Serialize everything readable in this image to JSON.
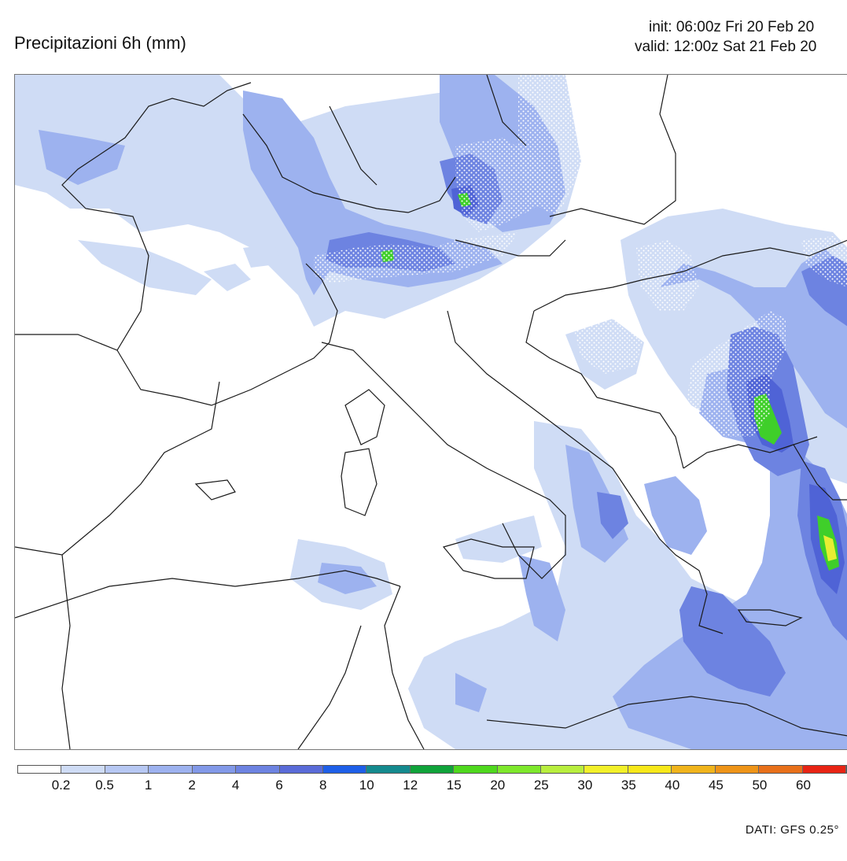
{
  "header": {
    "title": "Precipitazioni 6h (mm)",
    "init": "init: 06:00z Fri 20 Feb 20",
    "valid": "valid: 12:00z Sat 21 Feb 20"
  },
  "legend": {
    "colors": [
      "#ffffff",
      "#cfdcf5",
      "#b7c8f3",
      "#9db2ef",
      "#8299e8",
      "#6d83e1",
      "#5a6bd8",
      "#1e5fe8",
      "#148a8e",
      "#10a33a",
      "#4fd81e",
      "#7ee82c",
      "#b8ee3e",
      "#f2f02a",
      "#f7e81a",
      "#f0b41c",
      "#ee9418",
      "#e8701a",
      "#e82414"
    ],
    "labels": [
      "0.2",
      "0.5",
      "1",
      "2",
      "4",
      "6",
      "8",
      "10",
      "12",
      "15",
      "20",
      "25",
      "30",
      "35",
      "40",
      "45",
      "50",
      "60"
    ]
  },
  "source": "DATI: GFS 0.25°",
  "map": {
    "colors": {
      "light": "#cfdcf5",
      "medium": "#9db2ef",
      "strong": "#6d83e1",
      "heavy": "#4f63d6",
      "green": "#3fcf2a",
      "yellow": "#e8ee32",
      "border": "#1a1a1a"
    }
  }
}
